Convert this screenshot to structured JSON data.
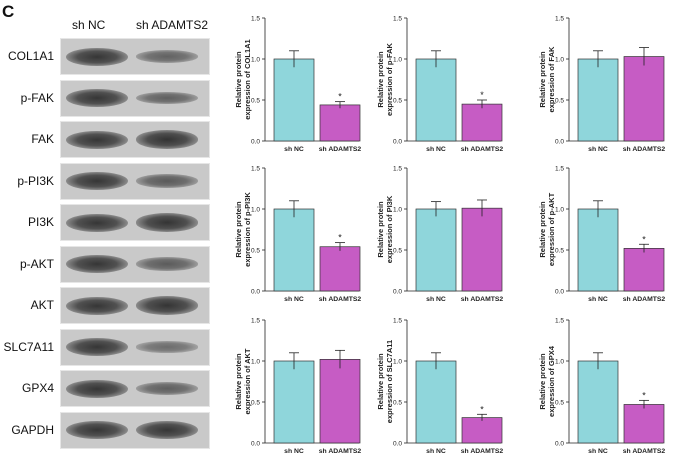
{
  "panel_label": "C",
  "blot": {
    "lanes": [
      "sh NC",
      "sh ADAMTS2"
    ],
    "rows": [
      {
        "label": "COL1A1",
        "intensity": [
          1.0,
          0.44
        ]
      },
      {
        "label": "p-FAK",
        "intensity": [
          1.0,
          0.45
        ]
      },
      {
        "label": "FAK",
        "intensity": [
          1.0,
          1.03
        ]
      },
      {
        "label": "p-PI3K",
        "intensity": [
          1.0,
          0.54
        ]
      },
      {
        "label": "PI3K",
        "intensity": [
          1.0,
          1.01
        ]
      },
      {
        "label": "p-AKT",
        "intensity": [
          1.0,
          0.52
        ]
      },
      {
        "label": "AKT",
        "intensity": [
          1.0,
          1.02
        ]
      },
      {
        "label": "SLC7A11",
        "intensity": [
          1.0,
          0.31
        ]
      },
      {
        "label": "GPX4",
        "intensity": [
          1.0,
          0.47
        ]
      },
      {
        "label": "GAPDH",
        "intensity": [
          1.0,
          1.0
        ]
      }
    ]
  },
  "colors": {
    "control": "#8fd6db",
    "knockdown": "#c65cc4",
    "axis": "#222222"
  },
  "chart_data": [
    {
      "type": "bar",
      "categories": [
        "sh NC",
        "sh ADAMTS2"
      ],
      "values": [
        1.0,
        0.44
      ],
      "errors": [
        0.1,
        0.04
      ],
      "ylabel": [
        "Relative protein",
        "expression of COL1A1"
      ],
      "ylim": [
        0,
        1.5
      ],
      "yticks": [
        "0.0",
        "0.5",
        "1.0",
        "1.5"
      ],
      "annotations": [
        "",
        "*"
      ]
    },
    {
      "type": "bar",
      "categories": [
        "sh NC",
        "sh ADAMTS2"
      ],
      "values": [
        1.0,
        0.45
      ],
      "errors": [
        0.1,
        0.05
      ],
      "ylabel": [
        "Relative protein",
        "expression of p-FAK"
      ],
      "ylim": [
        0,
        1.5
      ],
      "yticks": [
        "0.0",
        "0.5",
        "1.0",
        "1.5"
      ],
      "annotations": [
        "",
        "*"
      ]
    },
    {
      "type": "bar",
      "categories": [
        "sh NC",
        "sh ADAMTS2"
      ],
      "values": [
        1.0,
        1.03
      ],
      "errors": [
        0.1,
        0.11
      ],
      "ylabel": [
        "Relative protein",
        "expression of FAK"
      ],
      "ylim": [
        0,
        1.5
      ],
      "yticks": [
        "0.0",
        "0.5",
        "1.0",
        "1.5"
      ],
      "annotations": [
        "",
        ""
      ]
    },
    {
      "type": "bar",
      "categories": [
        "sh NC",
        "sh ADAMTS2"
      ],
      "values": [
        1.0,
        0.54
      ],
      "errors": [
        0.1,
        0.05
      ],
      "ylabel": [
        "Relative protein",
        "expression of p-PI3K"
      ],
      "ylim": [
        0,
        1.5
      ],
      "yticks": [
        "0.0",
        "0.5",
        "1.0",
        "1.5"
      ],
      "annotations": [
        "",
        "*"
      ]
    },
    {
      "type": "bar",
      "categories": [
        "sh NC",
        "sh ADAMTS2"
      ],
      "values": [
        1.0,
        1.01
      ],
      "errors": [
        0.09,
        0.1
      ],
      "ylabel": [
        "Relative protein",
        "expression of PI3K"
      ],
      "ylim": [
        0,
        1.5
      ],
      "yticks": [
        "0.0",
        "0.5",
        "1.0",
        "1.5"
      ],
      "annotations": [
        "",
        ""
      ]
    },
    {
      "type": "bar",
      "categories": [
        "sh NC",
        "sh ADAMTS2"
      ],
      "values": [
        1.0,
        0.52
      ],
      "errors": [
        0.1,
        0.05
      ],
      "ylabel": [
        "Relative protein",
        "expression of p-AKT"
      ],
      "ylim": [
        0,
        1.5
      ],
      "yticks": [
        "0.0",
        "0.5",
        "1.0",
        "1.5"
      ],
      "annotations": [
        "",
        "*"
      ]
    },
    {
      "type": "bar",
      "categories": [
        "sh NC",
        "sh ADAMTS2"
      ],
      "values": [
        1.0,
        1.02
      ],
      "errors": [
        0.1,
        0.11
      ],
      "ylabel": [
        "Relative protein",
        "expression of AKT"
      ],
      "ylim": [
        0,
        1.5
      ],
      "yticks": [
        "0.0",
        "0.5",
        "1.0",
        "1.5"
      ],
      "annotations": [
        "",
        ""
      ]
    },
    {
      "type": "bar",
      "categories": [
        "sh NC",
        "sh ADAMTS2"
      ],
      "values": [
        1.0,
        0.31
      ],
      "errors": [
        0.1,
        0.04
      ],
      "ylabel": [
        "Relative protein",
        "expression of SLC7A11"
      ],
      "ylim": [
        0,
        1.5
      ],
      "yticks": [
        "0.0",
        "0.5",
        "1.0",
        "1.5"
      ],
      "annotations": [
        "",
        "*"
      ]
    },
    {
      "type": "bar",
      "categories": [
        "sh NC",
        "sh ADAMTS2"
      ],
      "values": [
        1.0,
        0.47
      ],
      "errors": [
        0.1,
        0.05
      ],
      "ylabel": [
        "Relative protein",
        "expression of GPX4"
      ],
      "ylim": [
        0,
        1.5
      ],
      "yticks": [
        "0.0",
        "0.5",
        "1.0",
        "1.5"
      ],
      "annotations": [
        "",
        "*"
      ]
    }
  ]
}
